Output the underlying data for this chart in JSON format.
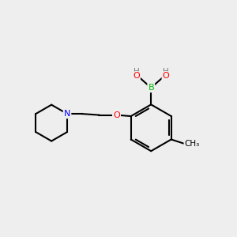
{
  "background_color": "#eeeeee",
  "atom_colors": {
    "B": "#00bb00",
    "O": "#ff0000",
    "N": "#0000ff",
    "C": "#000000",
    "H": "#888888"
  },
  "bond_color": "#000000",
  "bond_width": 1.5,
  "figsize": [
    3.0,
    3.0
  ],
  "dpi": 100
}
